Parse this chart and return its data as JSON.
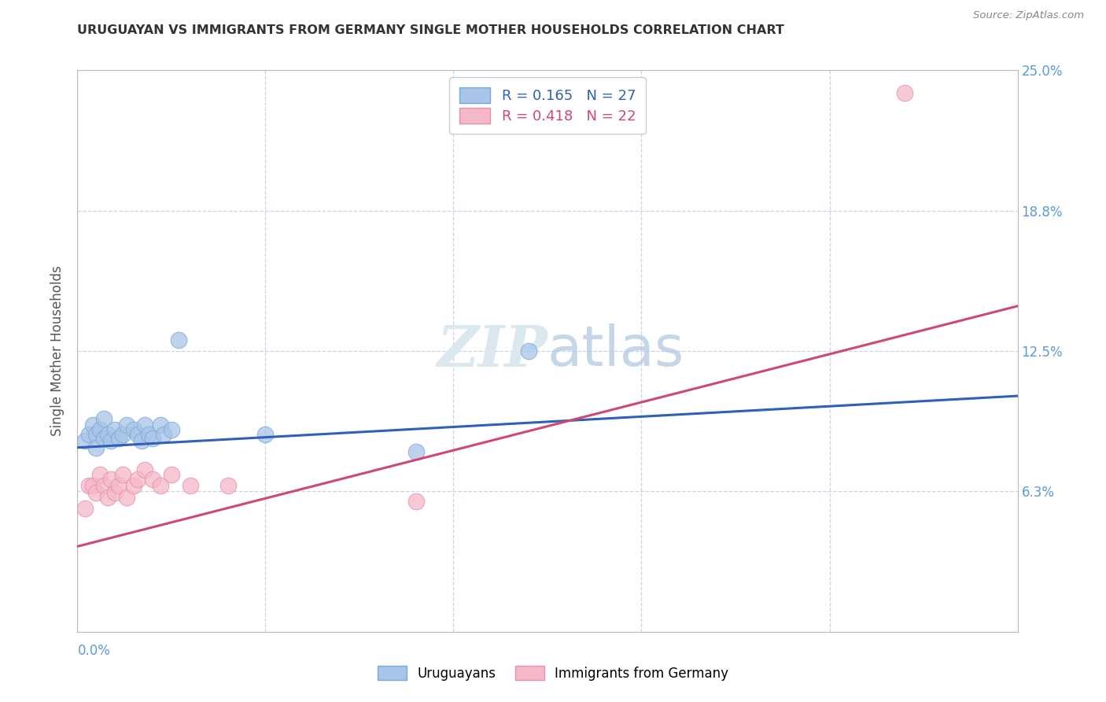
{
  "title": "URUGUAYAN VS IMMIGRANTS FROM GERMANY SINGLE MOTHER HOUSEHOLDS CORRELATION CHART",
  "source": "Source: ZipAtlas.com",
  "ylabel": "Single Mother Households",
  "xlabel": "",
  "xlim": [
    0.0,
    0.25
  ],
  "ylim": [
    0.0,
    0.25
  ],
  "yticks": [
    0.0,
    0.0625,
    0.125,
    0.1875,
    0.25
  ],
  "ytick_labels_right": [
    "",
    "6.3%",
    "12.5%",
    "18.8%",
    "25.0%"
  ],
  "series1_label": "Uruguayans",
  "series2_label": "Immigrants from Germany",
  "series1_R": 0.165,
  "series1_N": 27,
  "series2_R": 0.418,
  "series2_N": 22,
  "series1_color": "#a8c4e8",
  "series2_color": "#f5b8c8",
  "series1_edge": "#7aaad4",
  "series2_edge": "#e890a8",
  "trend1_color": "#3060b8",
  "trend2_color": "#d04870",
  "background_color": "#ffffff",
  "grid_color": "#c8d4e8",
  "watermark_color": "#dce8f0",
  "uruguayan_x": [
    0.002,
    0.003,
    0.004,
    0.005,
    0.005,
    0.006,
    0.007,
    0.007,
    0.008,
    0.009,
    0.01,
    0.011,
    0.012,
    0.013,
    0.015,
    0.016,
    0.017,
    0.018,
    0.019,
    0.02,
    0.022,
    0.023,
    0.025,
    0.027,
    0.05,
    0.09,
    0.12
  ],
  "uruguayan_y": [
    0.085,
    0.088,
    0.092,
    0.088,
    0.082,
    0.09,
    0.095,
    0.086,
    0.088,
    0.085,
    0.09,
    0.086,
    0.088,
    0.092,
    0.09,
    0.088,
    0.085,
    0.092,
    0.088,
    0.086,
    0.092,
    0.088,
    0.09,
    0.13,
    0.088,
    0.08,
    0.125
  ],
  "germany_x": [
    0.002,
    0.003,
    0.004,
    0.005,
    0.006,
    0.007,
    0.008,
    0.009,
    0.01,
    0.011,
    0.012,
    0.013,
    0.015,
    0.016,
    0.018,
    0.02,
    0.022,
    0.025,
    0.03,
    0.04,
    0.09,
    0.22
  ],
  "germany_y": [
    0.055,
    0.065,
    0.065,
    0.062,
    0.07,
    0.065,
    0.06,
    0.068,
    0.062,
    0.065,
    0.07,
    0.06,
    0.065,
    0.068,
    0.072,
    0.068,
    0.065,
    0.07,
    0.065,
    0.065,
    0.058,
    0.24
  ],
  "trend1_x0": 0.0,
  "trend1_y0": 0.082,
  "trend1_x1": 0.25,
  "trend1_y1": 0.105,
  "trend2_x0": 0.0,
  "trend2_y0": 0.038,
  "trend2_x1": 0.25,
  "trend2_y1": 0.145,
  "axis_label_color": "#5b9bd5",
  "axis_label_fontsize": 12
}
